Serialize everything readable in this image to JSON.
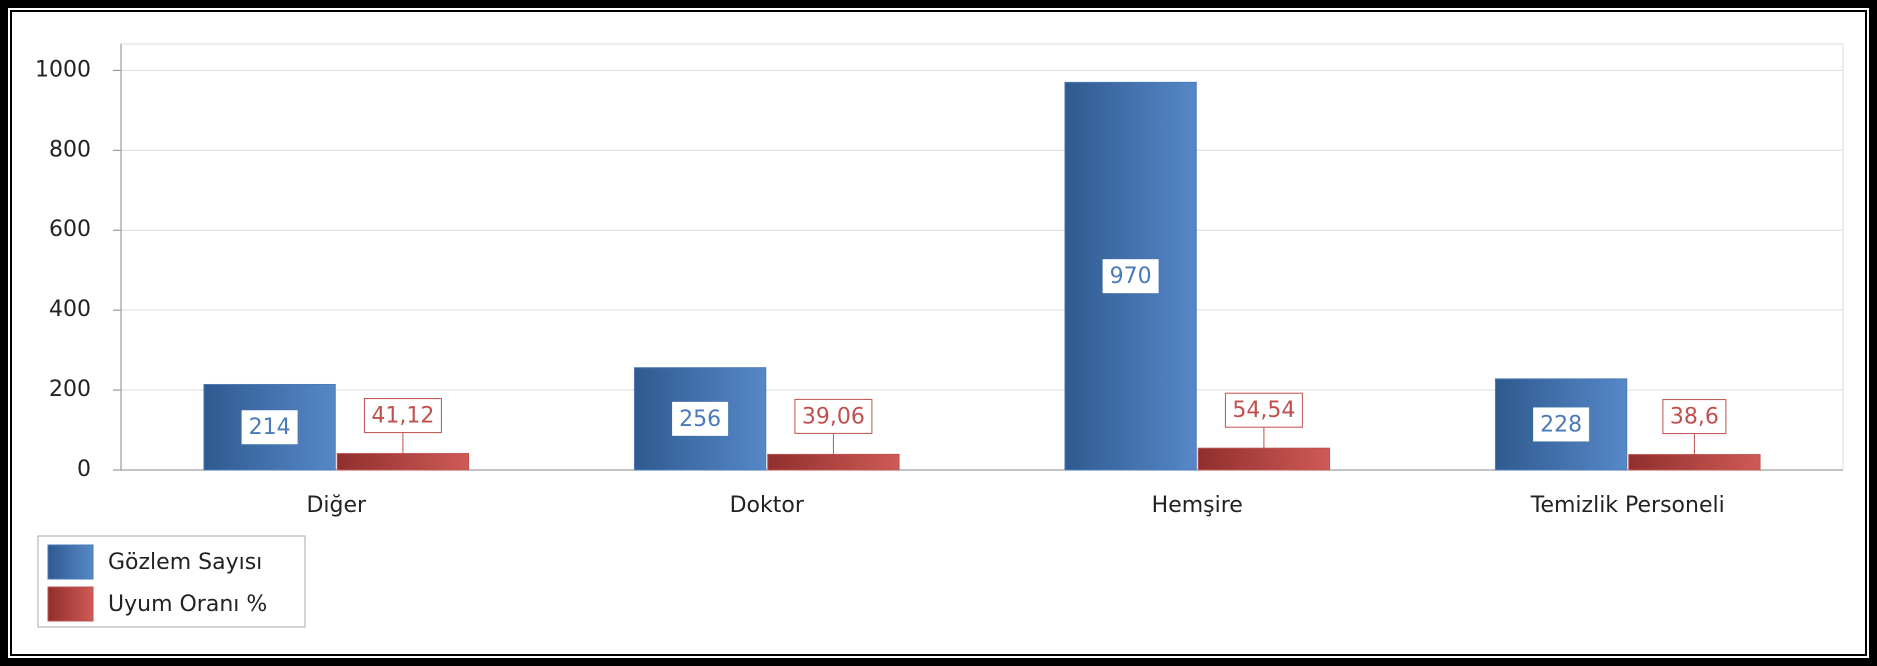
{
  "chart_data": {
    "type": "bar",
    "categories": [
      "Diğer",
      "Doktor",
      "Hemşire",
      "Temizlik Personeli"
    ],
    "series": [
      {
        "name": "Gözlem Sayısı",
        "color": "#4a7ab8",
        "values": [
          214,
          256,
          970,
          228
        ]
      },
      {
        "name": "Uyum Oranı %",
        "color": "#c0504d",
        "values": [
          41.12,
          39.06,
          54.54,
          38.6
        ],
        "value_labels": [
          "41,12",
          "39,06",
          "54,54",
          "38,6"
        ]
      }
    ],
    "ylim": [
      0,
      1066
    ],
    "yticks": [
      0,
      200,
      400,
      600,
      800,
      1000
    ],
    "grid": true,
    "legend": "bottom-left"
  }
}
